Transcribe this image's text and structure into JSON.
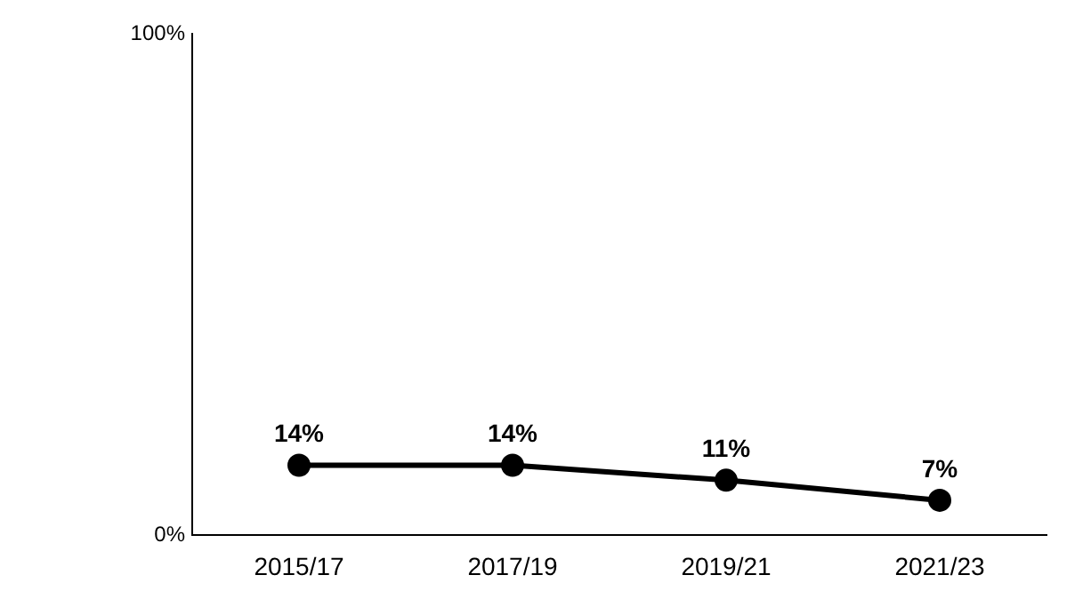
{
  "chart_data": {
    "type": "line",
    "categories": [
      "2015/17",
      "2017/19",
      "2019/21",
      "2021/23"
    ],
    "series": [
      {
        "color": "#000000",
        "values": [
          14,
          14,
          11,
          7
        ],
        "value_labels": [
          "14%",
          "14%",
          "11%",
          "7%"
        ]
      }
    ],
    "ylim": [
      0,
      100
    ],
    "yticks": [
      {
        "value": 0,
        "label": "0%"
      },
      {
        "value": 100,
        "label": "100%"
      }
    ],
    "grid": false,
    "legend": false,
    "marker": "circle",
    "line_style": "solid"
  }
}
